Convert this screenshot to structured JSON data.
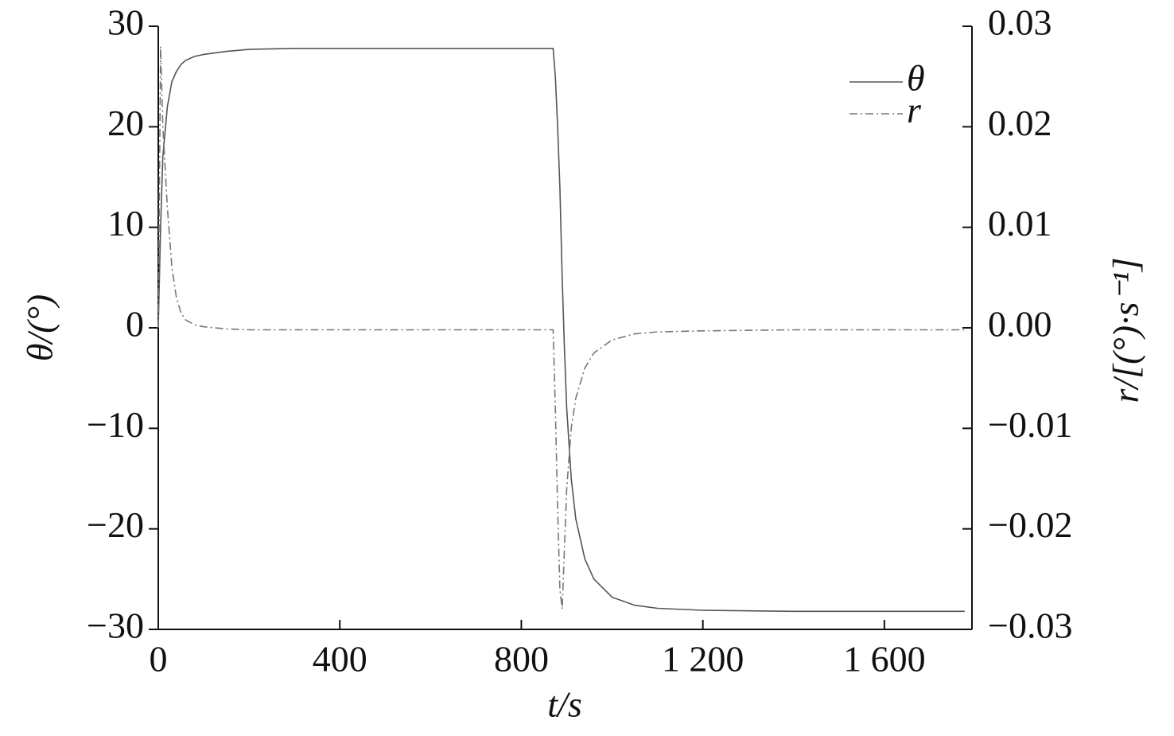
{
  "chart_data": {
    "type": "line",
    "x_label": "t/s",
    "y_label": "θ/(°)",
    "y2_label": "r/[(°)·s⁻¹]",
    "x": [
      0,
      5,
      10,
      20,
      30,
      40,
      50,
      60,
      80,
      100,
      150,
      200,
      300,
      400,
      600,
      800,
      870,
      875,
      880,
      885,
      890,
      895,
      900,
      910,
      920,
      940,
      960,
      1000,
      1050,
      1100,
      1200,
      1400,
      1600,
      1777
    ],
    "series": [
      {
        "name": "θ",
        "color": "#555555",
        "dash": "solid",
        "axis": "y",
        "values": [
          0,
          10,
          17,
          22,
          24.5,
          25.5,
          26.2,
          26.6,
          27.0,
          27.2,
          27.5,
          27.7,
          27.8,
          27.8,
          27.8,
          27.8,
          27.8,
          25,
          20,
          14,
          5,
          -2,
          -8,
          -15,
          -19,
          -23,
          -25,
          -26.8,
          -27.6,
          -27.9,
          -28.1,
          -28.2,
          -28.2,
          -28.2
        ]
      },
      {
        "name": "r",
        "color": "#777777",
        "dash": "dashdot",
        "axis": "y2",
        "values": [
          0,
          0.028,
          0.02,
          0.012,
          0.006,
          0.003,
          0.0015,
          0.0008,
          0.0003,
          0.0001,
          -0.0001,
          -0.0002,
          -0.0002,
          -0.0002,
          -0.0002,
          -0.0002,
          -0.0002,
          -0.008,
          -0.018,
          -0.026,
          -0.028,
          -0.022,
          -0.016,
          -0.01,
          -0.007,
          -0.004,
          -0.0025,
          -0.0012,
          -0.0006,
          -0.0004,
          -0.0003,
          -0.0002,
          -0.0002,
          -0.0002
        ]
      }
    ],
    "xlim": [
      0,
      1793
    ],
    "xticks": [
      0,
      400,
      800,
      {
        "value": 1200,
        "label": "1 200"
      },
      {
        "value": 1600,
        "label": "1 600"
      }
    ],
    "ylim": [
      -30,
      30
    ],
    "yticks": [
      {
        "value": -30,
        "label": "−30"
      },
      {
        "value": -20,
        "label": "−20"
      },
      {
        "value": -10,
        "label": "−10"
      },
      0,
      10,
      20,
      30
    ],
    "y2lim": [
      -0.03,
      0.03
    ],
    "y2ticks": [
      {
        "value": -0.03,
        "label": "−0.03"
      },
      {
        "value": -0.02,
        "label": "−0.02"
      },
      {
        "value": -0.01,
        "label": "−0.01"
      },
      {
        "value": 0,
        "label": "0.00"
      },
      0.01,
      0.02,
      0.03
    ],
    "legend": "upper right",
    "grid": false
  }
}
